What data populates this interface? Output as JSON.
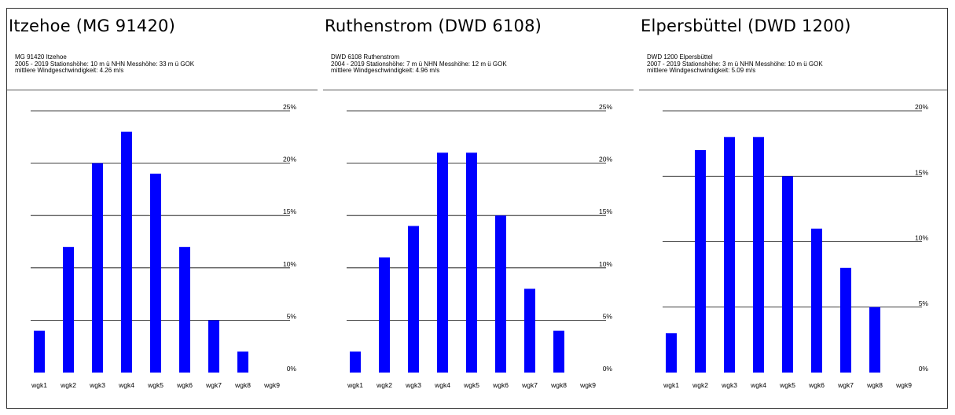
{
  "panels": [
    {
      "title": "Itzehoe (MG 91420)",
      "meta": [
        "MG 91420   Itzehoe",
        "2005 - 2019    Stationshöhe: 10 m ü NHN   Messhöhe: 33 m ü GOK",
        "mittlere Windgeschwindigkeit: 4.26 m/s"
      ]
    },
    {
      "title": "Ruthenstrom (DWD 6108)",
      "meta": [
        "DWD 6108   Ruthenstrom",
        "2004 - 2019    Stationshöhe: 7 m ü NHN   Messhöhe: 12 m ü GOK",
        "mittlere Windgeschwindigkeit: 4.96 m/s"
      ]
    },
    {
      "title": "Elpersbüttel (DWD 1200)",
      "meta": [
        "DWD 1200   Elpersbüttel",
        "2007 - 2019    Stationshöhe: 3 m ü NHN   Messhöhe: 10 m ü GOK",
        "mittlere Windgeschwindigkeit: 5.09 m/s"
      ]
    }
  ],
  "chart_data": [
    {
      "type": "bar",
      "title": "Itzehoe (MG 91420)",
      "categories": [
        "wgk1",
        "wgk2",
        "wgk3",
        "wgk4",
        "wgk5",
        "wgk6",
        "wgk7",
        "wgk8",
        "wgk9"
      ],
      "values": [
        4,
        12,
        20,
        23,
        19,
        12,
        5,
        2,
        0
      ],
      "ylim": [
        0,
        25
      ],
      "yticks": [
        "0%",
        "5%",
        "10%",
        "15%",
        "20%",
        "25%"
      ],
      "grid": true,
      "color": "#0000ff"
    },
    {
      "type": "bar",
      "title": "Ruthenstrom (DWD 6108)",
      "categories": [
        "wgk1",
        "wgk2",
        "wgk3",
        "wgk4",
        "wgk5",
        "wgk6",
        "wgk7",
        "wgk8",
        "wgk9"
      ],
      "values": [
        2,
        11,
        14,
        21,
        21,
        15,
        8,
        4,
        0
      ],
      "ylim": [
        0,
        25
      ],
      "yticks": [
        "0%",
        "5%",
        "10%",
        "15%",
        "20%",
        "25%"
      ],
      "grid": true,
      "color": "#0000ff"
    },
    {
      "type": "bar",
      "title": "Elpersbüttel (DWD 1200)",
      "categories": [
        "wgk1",
        "wgk2",
        "wgk3",
        "wgk4",
        "wgk5",
        "wgk6",
        "wgk7",
        "wgk8",
        "wgk9"
      ],
      "values": [
        3,
        17,
        18,
        18,
        15,
        11,
        8,
        5,
        0
      ],
      "ylim": [
        0,
        20
      ],
      "yticks": [
        "0%",
        "5%",
        "10%",
        "15%",
        "20%"
      ],
      "grid": true,
      "color": "#0000ff"
    }
  ]
}
